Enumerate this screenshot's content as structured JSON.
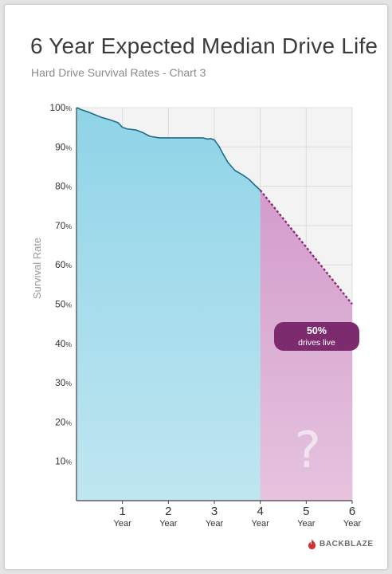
{
  "title": "6 Year Expected Median Drive Life",
  "subtitle": "Hard Drive Survival Rates - Chart 3",
  "brand": "BACKBLAZE",
  "colors": {
    "actual_fill": "#a6dceb",
    "actual_line": "#1e6e8a",
    "projected_fill": "#dbaed2",
    "projected_line": "#8a2d78",
    "badge": "#7d2b6f",
    "logo_red": "#d32f2f"
  },
  "chart_data": {
    "type": "area",
    "ylabel": "Survival Rate",
    "xlabel": "",
    "xlim": [
      0,
      6
    ],
    "ylim": [
      0,
      100
    ],
    "x_ticks": [
      {
        "value": 1,
        "num": "1",
        "unit": "Year"
      },
      {
        "value": 2,
        "num": "2",
        "unit": "Year"
      },
      {
        "value": 3,
        "num": "3",
        "unit": "Year"
      },
      {
        "value": 4,
        "num": "4",
        "unit": "Year"
      },
      {
        "value": 5,
        "num": "5",
        "unit": "Year"
      },
      {
        "value": 6,
        "num": "6",
        "unit": "Year"
      }
    ],
    "y_ticks": [
      {
        "value": 10,
        "num": "10",
        "unit": "%"
      },
      {
        "value": 20,
        "num": "20",
        "unit": "%"
      },
      {
        "value": 30,
        "num": "30",
        "unit": "%"
      },
      {
        "value": 40,
        "num": "40",
        "unit": "%"
      },
      {
        "value": 50,
        "num": "50",
        "unit": "%"
      },
      {
        "value": 60,
        "num": "60",
        "unit": "%"
      },
      {
        "value": 70,
        "num": "70",
        "unit": "%"
      },
      {
        "value": 80,
        "num": "80",
        "unit": "%"
      },
      {
        "value": 90,
        "num": "90",
        "unit": "%"
      },
      {
        "value": 100,
        "num": "100",
        "unit": "%"
      }
    ],
    "grid": true,
    "series": [
      {
        "kind": "actual",
        "x": [
          0,
          0.1,
          0.25,
          0.4,
          0.55,
          0.7,
          0.9,
          1.0,
          1.1,
          1.3,
          1.45,
          1.6,
          1.8,
          2.0,
          2.2,
          2.4,
          2.6,
          2.75,
          2.85,
          2.92,
          3.0,
          3.1,
          3.2,
          3.3,
          3.45,
          3.6,
          3.75,
          3.88,
          4.0
        ],
        "y": [
          100,
          99.5,
          98.9,
          98.2,
          97.5,
          97.0,
          96.2,
          95.0,
          94.6,
          94.3,
          93.6,
          92.7,
          92.3,
          92.3,
          92.3,
          92.3,
          92.3,
          92.3,
          92.0,
          92.1,
          91.8,
          90.2,
          88.0,
          86.0,
          84.0,
          83.0,
          81.8,
          80.3,
          79.0
        ]
      },
      {
        "kind": "projected",
        "x": [
          4,
          6
        ],
        "y": [
          79,
          50
        ]
      }
    ],
    "annotations": {
      "badge_value": "50%",
      "badge_text": "drives live",
      "unknown_mark": "?"
    }
  }
}
